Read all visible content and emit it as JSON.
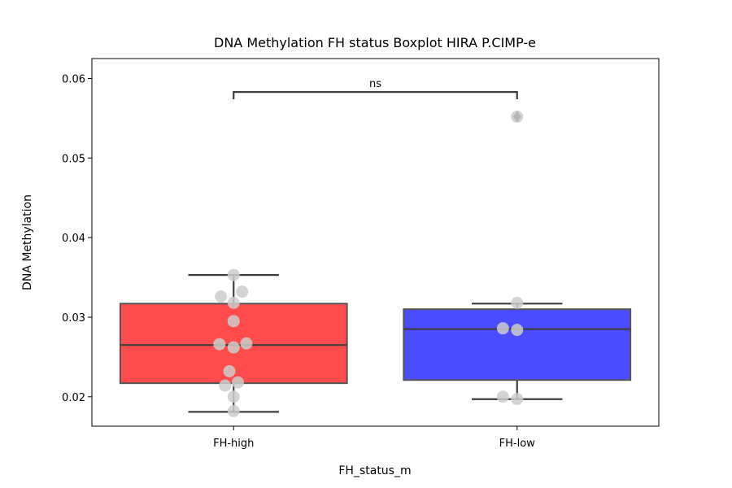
{
  "chart_data": {
    "type": "box",
    "title": "DNA Methylation FH status Boxplot HIRA P.CIMP-e",
    "xlabel": "FH_status_m",
    "ylabel": "DNA Methylation",
    "ylim": [
      0.0163,
      0.0625
    ],
    "yticks": [
      0.02,
      0.03,
      0.04,
      0.05,
      0.06
    ],
    "ytick_labels": [
      "0.02",
      "0.03",
      "0.04",
      "0.05",
      "0.06"
    ],
    "categories": [
      "FH-high",
      "FH-low"
    ],
    "boxes": [
      {
        "name": "FH-high",
        "color": "#ff4b4b",
        "whisker_low": 0.0181,
        "q1": 0.0217,
        "median": 0.0265,
        "q3": 0.0317,
        "whisker_high": 0.0353,
        "outliers": []
      },
      {
        "name": "FH-low",
        "color": "#4b4bff",
        "whisker_low": 0.0197,
        "q1": 0.0221,
        "median": 0.0285,
        "q3": 0.031,
        "whisker_high": 0.0317,
        "outliers": [
          0.0552
        ]
      }
    ],
    "points": [
      {
        "category": "FH-high",
        "offset": 0.0,
        "y": 0.0353
      },
      {
        "category": "FH-high",
        "offset": -0.045,
        "y": 0.0326
      },
      {
        "category": "FH-high",
        "offset": 0.03,
        "y": 0.0332
      },
      {
        "category": "FH-high",
        "offset": 0.0,
        "y": 0.0318
      },
      {
        "category": "FH-high",
        "offset": 0.0,
        "y": 0.0295
      },
      {
        "category": "FH-high",
        "offset": -0.05,
        "y": 0.0266
      },
      {
        "category": "FH-high",
        "offset": 0.0,
        "y": 0.0262
      },
      {
        "category": "FH-high",
        "offset": 0.045,
        "y": 0.0267
      },
      {
        "category": "FH-high",
        "offset": -0.015,
        "y": 0.0232
      },
      {
        "category": "FH-high",
        "offset": 0.015,
        "y": 0.0218
      },
      {
        "category": "FH-high",
        "offset": -0.03,
        "y": 0.0214
      },
      {
        "category": "FH-high",
        "offset": 0.0,
        "y": 0.02
      },
      {
        "category": "FH-high",
        "offset": 0.0,
        "y": 0.0182
      },
      {
        "category": "FH-low",
        "offset": 0.0,
        "y": 0.0552
      },
      {
        "category": "FH-low",
        "offset": 0.0,
        "y": 0.0318
      },
      {
        "category": "FH-low",
        "offset": -0.05,
        "y": 0.0286
      },
      {
        "category": "FH-low",
        "offset": 0.0,
        "y": 0.0284
      },
      {
        "category": "FH-low",
        "offset": -0.05,
        "y": 0.02
      },
      {
        "category": "FH-low",
        "offset": 0.0,
        "y": 0.0197
      }
    ],
    "point_color": "#cccccc",
    "annotation": {
      "text": "ns",
      "from": "FH-high",
      "to": "FH-low",
      "y": 0.0583
    },
    "grid": false,
    "legend": "none"
  }
}
